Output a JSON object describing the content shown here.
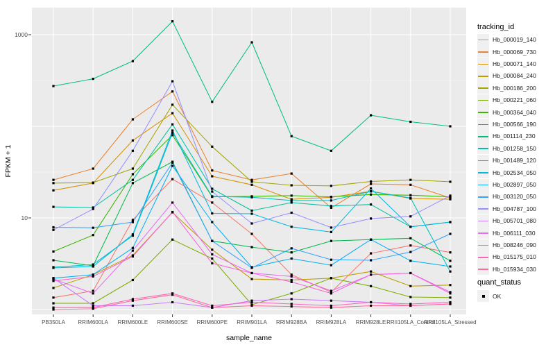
{
  "axes": {
    "x_label": "sample_name",
    "y_label": "FPKM + 1",
    "y_tick_labels": [
      {
        "value": 10,
        "label": "10"
      },
      {
        "value": 1000,
        "label": "1000"
      }
    ]
  },
  "legend": {
    "tracking_title": "tracking_id",
    "quant_title": "quant_status",
    "quant_ok_label": "OK"
  },
  "style": {
    "panel_bg": "#EBEBEB",
    "grid_color": "#FFFFFF",
    "tick_color": "#333333",
    "axis_text_color": "#4D4D4D",
    "marker_color": "#000000",
    "legend_key_bg": "#F0F0F0"
  },
  "chart_data": {
    "type": "line",
    "title": "",
    "xlabel": "sample_name",
    "ylabel": "FPKM + 1",
    "y_scale": "log10",
    "ylim": [
      1,
      1500
    ],
    "y_major_breaks": [
      1,
      10,
      100,
      1000
    ],
    "y_minor_breaks": [
      3.162,
      31.62,
      316.2
    ],
    "y_labeled_breaks": [
      10,
      1000
    ],
    "grid": true,
    "legend_position": "right",
    "marker": "black-square",
    "point_status_all": "OK",
    "categories": [
      "PB350LA",
      "RRIM600LA",
      "RRIM600LE",
      "RRIM600SE",
      "RRIM600PE",
      "RRIM901LA",
      "RRIM928BA",
      "RRIM928LA",
      "RRIM928LE",
      "RRII105LA_Control",
      "RRII105LA_Stressed"
    ],
    "series": [
      {
        "name": "Hb_000019_140",
        "color": "#F8766D",
        "values": [
          1.35,
          1.6,
          9.5,
          26.5,
          14.7,
          6.7,
          2.4,
          1.55,
          4.1,
          5.0,
          4.2
        ]
      },
      {
        "name": "Hb_000069_730",
        "color": "#EA8331",
        "values": [
          26,
          34.5,
          119,
          240,
          33,
          26,
          30.5,
          12.9,
          23.5,
          23,
          16.5
        ]
      },
      {
        "name": "Hb_000071_140",
        "color": "#D89000",
        "values": [
          20,
          24,
          70,
          139,
          28.5,
          23,
          16,
          16.8,
          19.5,
          16.3,
          16
        ]
      },
      {
        "name": "Hb_000084_240",
        "color": "#C09B00",
        "values": [
          1.72,
          2.4,
          3.9,
          11.5,
          4.5,
          2.15,
          2.1,
          2.2,
          2.6,
          1.8,
          1.85
        ]
      },
      {
        "name": "Hb_000186_200",
        "color": "#A3A500",
        "values": [
          24,
          24.3,
          34.5,
          172,
          60,
          24.8,
          22.7,
          22.4,
          25,
          26,
          24.8
        ]
      },
      {
        "name": "Hb_000221_060",
        "color": "#7CAE00",
        "values": [
          1.17,
          1.17,
          2.1,
          5.8,
          3.6,
          1.13,
          1.5,
          2.2,
          1.8,
          1.37,
          1.35
        ]
      },
      {
        "name": "Hb_000364_040",
        "color": "#39B600",
        "values": [
          4.3,
          6.5,
          30,
          80,
          17,
          17.2,
          17.5,
          17,
          18,
          17.7,
          17
        ]
      },
      {
        "name": "Hb_000566_190",
        "color": "#00BB4E",
        "values": [
          3.45,
          3.0,
          24,
          41,
          5.6,
          4.8,
          4.2,
          5.6,
          5.8,
          6.0,
          3.4
        ]
      },
      {
        "name": "Hb_001114_230",
        "color": "#00BF7D",
        "values": [
          275,
          330,
          515,
          1400,
          185,
          825,
          78,
          54,
          132,
          112,
          100
        ]
      },
      {
        "name": "Hb_001258_150",
        "color": "#00C1A3",
        "values": [
          13.2,
          13,
          26,
          105,
          20.8,
          12,
          14.7,
          13.5,
          14,
          8.0,
          9.0
        ]
      },
      {
        "name": "Hb_001489_120",
        "color": "#00BFC4",
        "values": [
          2.9,
          3.1,
          6.4,
          85,
          17.2,
          16.8,
          15.5,
          15.5,
          19.5,
          16.5,
          2.6
        ]
      },
      {
        "name": "Hb_002534_050",
        "color": "#00BAE0",
        "values": [
          2.85,
          2.95,
          6.6,
          90,
          11.2,
          11.1,
          8.0,
          7.0,
          21,
          8.0,
          9.0
        ]
      },
      {
        "name": "Hb_002897_050",
        "color": "#00B0F6",
        "values": [
          2.2,
          2.4,
          4.7,
          37,
          9.0,
          2.9,
          3.6,
          3.05,
          5.8,
          3.4,
          2.95
        ]
      },
      {
        "name": "Hb_003120_050",
        "color": "#35A2FF",
        "values": [
          7.9,
          7.8,
          9.0,
          40,
          5.6,
          2.85,
          4.65,
          3.5,
          3.45,
          4.25,
          6.7
        ]
      },
      {
        "name": "Hb_004787_100",
        "color": "#9590FF",
        "values": [
          7.4,
          12.5,
          54,
          310,
          19.4,
          8.7,
          11.4,
          7.85,
          9.85,
          10.4,
          17.5
        ]
      },
      {
        "name": "Hb_005701_080",
        "color": "#C77CFF",
        "values": [
          2.2,
          1.1,
          1.1,
          1.2,
          1.05,
          1.25,
          1.3,
          1.25,
          1.2,
          1.1,
          1.15
        ]
      },
      {
        "name": "Hb_006111_030",
        "color": "#E76BF3",
        "values": [
          2.15,
          1.5,
          4.4,
          14.7,
          4.0,
          2.5,
          2.3,
          1.6,
          2.4,
          2.5,
          1.55
        ]
      },
      {
        "name": "Hb_008246_090",
        "color": "#FA62DB",
        "values": [
          2.05,
          2.3,
          3.8,
          11.6,
          3.2,
          2.5,
          2.0,
          1.5,
          2.4,
          2.5,
          1.5
        ]
      },
      {
        "name": "Hb_015175_010",
        "color": "#FF62BC",
        "values": [
          1.05,
          1.05,
          1.3,
          1.5,
          1.1,
          1.2,
          1.15,
          1.1,
          1.2,
          1.15,
          1.2
        ]
      },
      {
        "name": "Hb_015934_030",
        "color": "#FF6A98",
        "values": [
          1.0,
          1.02,
          1.25,
          1.45,
          1.05,
          1.1,
          1.08,
          1.05,
          1.1,
          1.1,
          1.15
        ]
      }
    ]
  }
}
